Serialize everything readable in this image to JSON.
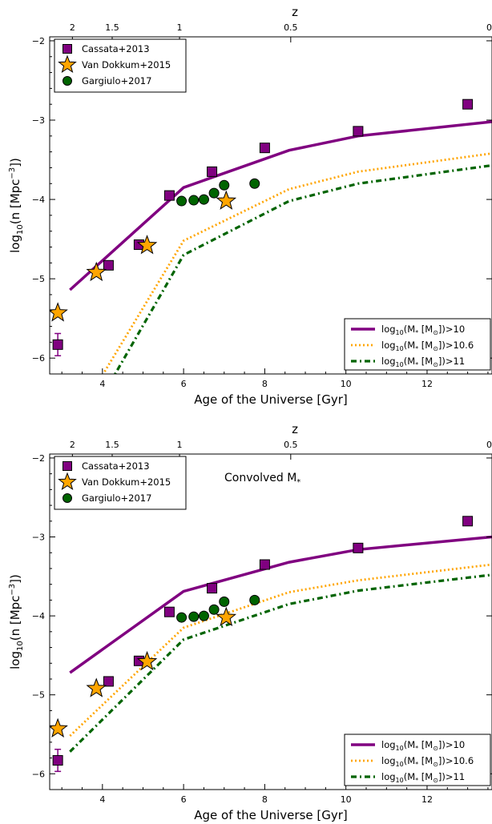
{
  "chart_data": [
    {
      "type": "scatter",
      "title": "",
      "annotation": "",
      "xlabel": "Age of the Universe [Gyr]",
      "ylabel": "log10(n [Mpc^-3])",
      "top_axis_label": "z",
      "xlim": [
        2.7,
        13.6
      ],
      "ylim": [
        -6.2,
        -1.95
      ],
      "x_ticks": [
        4,
        6,
        8,
        10,
        12
      ],
      "y_ticks": [
        -6,
        -5,
        -4,
        -3,
        -2
      ],
      "z_ticks": [
        {
          "label": "2",
          "age": 3.26
        },
        {
          "label": "1.5",
          "age": 4.24
        },
        {
          "label": "1",
          "age": 5.9
        },
        {
          "label": "0.5",
          "age": 8.64
        },
        {
          "label": "0",
          "age": 13.6
        }
      ],
      "points": [
        {
          "name": "Cassata+2013",
          "marker": "square",
          "color": "#800080",
          "x": [
            2.9,
            4.15,
            4.9,
            5.65,
            6.7,
            8.0,
            10.3,
            13.0
          ],
          "y": [
            -5.83,
            -4.83,
            -4.57,
            -3.95,
            -3.65,
            -3.35,
            -3.14,
            -2.8
          ],
          "err": [
            0.14,
            0,
            0.05,
            0,
            0,
            0,
            0,
            0
          ]
        },
        {
          "name": "Van Dokkum+2015",
          "marker": "star",
          "color": "#FFA500",
          "x": [
            2.9,
            3.85,
            5.1,
            7.05
          ],
          "y": [
            -5.43,
            -4.92,
            -4.58,
            -4.02
          ]
        },
        {
          "name": "Gargiulo+2017",
          "marker": "circle",
          "color": "#006400",
          "x": [
            5.95,
            6.25,
            6.5,
            6.75,
            7.0,
            7.75
          ],
          "y": [
            -4.02,
            -4.01,
            -4.0,
            -3.92,
            -3.82,
            -3.8
          ]
        }
      ],
      "series": [
        {
          "name": "log10(M* [Msun])>10",
          "style": "solid",
          "color": "#800080",
          "x": [
            3.2,
            6.0,
            8.6,
            10.3,
            13.6
          ],
          "y": [
            -5.14,
            -3.85,
            -3.38,
            -3.2,
            -3.02
          ]
        },
        {
          "name": "log10(M* [Msun])>10.6",
          "style": "dotted",
          "color": "#FFA500",
          "x": [
            3.9,
            6.0,
            8.6,
            10.3,
            13.6
          ],
          "y": [
            -6.3,
            -4.52,
            -3.87,
            -3.65,
            -3.42
          ]
        },
        {
          "name": "log10(M* [Msun])>11",
          "style": "dashdot",
          "color": "#006400",
          "x": [
            4.2,
            6.0,
            8.6,
            10.3,
            13.6
          ],
          "y": [
            -6.3,
            -4.7,
            -4.02,
            -3.8,
            -3.57
          ]
        }
      ]
    },
    {
      "type": "scatter",
      "title": "",
      "annotation": "Convolved M*",
      "xlabel": "Age of the Universe [Gyr]",
      "ylabel": "log10(n [Mpc^-3])",
      "top_axis_label": "z",
      "xlim": [
        2.7,
        13.6
      ],
      "ylim": [
        -6.2,
        -1.95
      ],
      "x_ticks": [
        4,
        6,
        8,
        10,
        12
      ],
      "y_ticks": [
        -6,
        -5,
        -4,
        -3,
        -2
      ],
      "z_ticks": [
        {
          "label": "2",
          "age": 3.26
        },
        {
          "label": "1.5",
          "age": 4.24
        },
        {
          "label": "1",
          "age": 5.9
        },
        {
          "label": "0.5",
          "age": 8.64
        },
        {
          "label": "0",
          "age": 13.6
        }
      ],
      "points": [
        {
          "name": "Cassata+2013",
          "marker": "square",
          "color": "#800080",
          "x": [
            2.9,
            4.15,
            4.9,
            5.65,
            6.7,
            8.0,
            10.3,
            13.0
          ],
          "y": [
            -5.83,
            -4.83,
            -4.57,
            -3.95,
            -3.65,
            -3.35,
            -3.14,
            -2.8
          ],
          "err": [
            0.14,
            0,
            0.05,
            0,
            0,
            0,
            0,
            0
          ]
        },
        {
          "name": "Van Dokkum+2015",
          "marker": "star",
          "color": "#FFA500",
          "x": [
            2.9,
            3.85,
            5.1,
            7.05
          ],
          "y": [
            -5.43,
            -4.92,
            -4.58,
            -4.02
          ]
        },
        {
          "name": "Gargiulo+2017",
          "marker": "circle",
          "color": "#006400",
          "x": [
            5.95,
            6.25,
            6.5,
            6.75,
            7.0,
            7.75
          ],
          "y": [
            -4.02,
            -4.01,
            -4.0,
            -3.92,
            -3.82,
            -3.8
          ]
        }
      ],
      "series": [
        {
          "name": "log10(M* [Msun])>10",
          "style": "solid",
          "color": "#800080",
          "x": [
            3.2,
            6.0,
            8.6,
            10.3,
            13.6
          ],
          "y": [
            -4.72,
            -3.69,
            -3.32,
            -3.16,
            -3.0
          ]
        },
        {
          "name": "log10(M* [Msun])>10.6",
          "style": "dotted",
          "color": "#FFA500",
          "x": [
            3.2,
            6.0,
            8.6,
            10.3,
            13.6
          ],
          "y": [
            -5.52,
            -4.15,
            -3.7,
            -3.55,
            -3.35
          ]
        },
        {
          "name": "log10(M* [Msun])>11",
          "style": "dashdot",
          "color": "#006400",
          "x": [
            3.2,
            6.0,
            8.6,
            10.3,
            13.6
          ],
          "y": [
            -5.72,
            -4.3,
            -3.85,
            -3.68,
            -3.48
          ]
        }
      ]
    }
  ]
}
